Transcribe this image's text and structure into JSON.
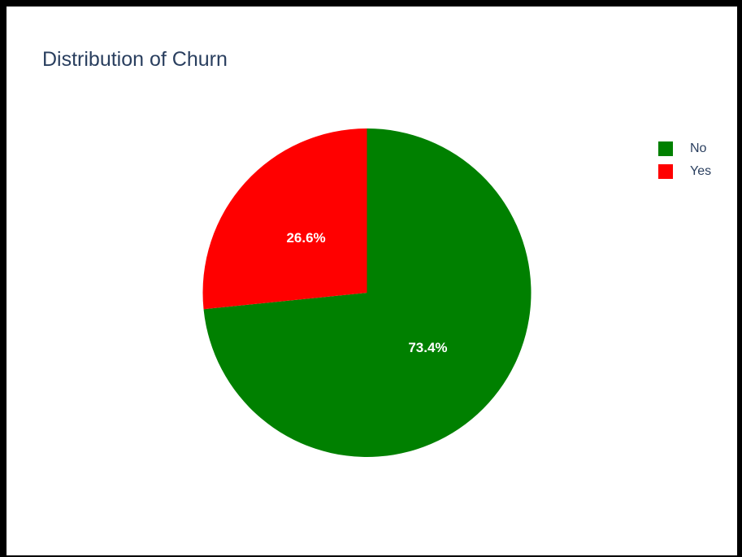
{
  "chart_data": {
    "type": "pie",
    "title": "Distribution of Churn",
    "slices": [
      {
        "label": "No",
        "value": 73.4,
        "text": "73.4%",
        "color": "#008000"
      },
      {
        "label": "Yes",
        "value": 26.6,
        "text": "26.6%",
        "color": "#ff0000"
      }
    ],
    "direction": "clockwise",
    "start_angle": "top",
    "label_color": "#ffffff",
    "legend_position": "top-right",
    "background": "#ffffff",
    "title_color": "#2a3f5f"
  }
}
